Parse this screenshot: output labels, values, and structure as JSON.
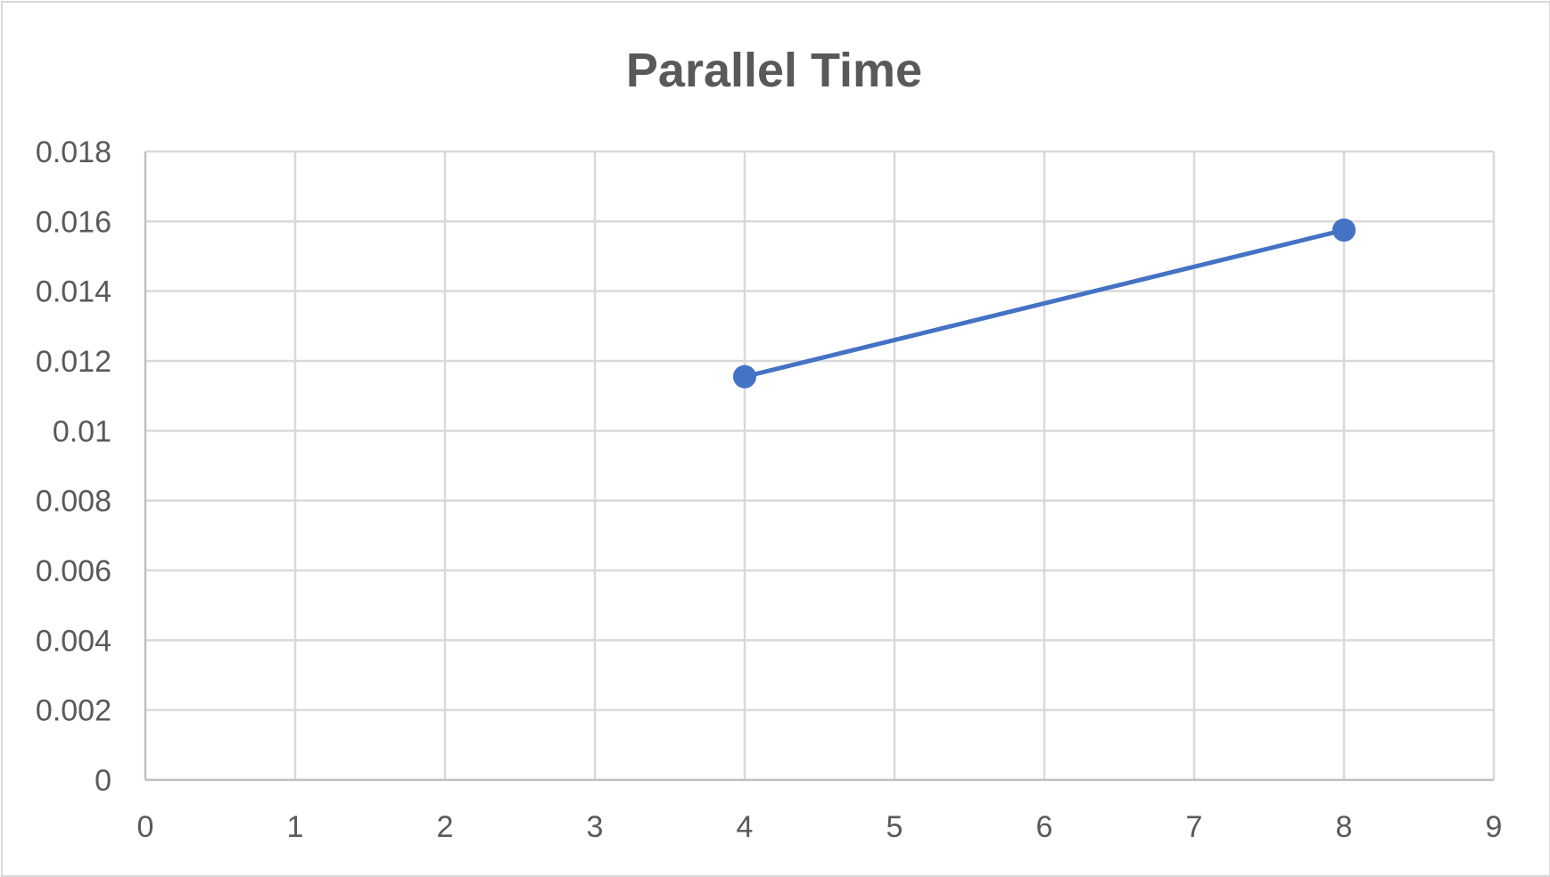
{
  "chart_data": {
    "type": "scatter",
    "title": "Parallel Time",
    "xlabel": "",
    "ylabel": "",
    "xlim": [
      0,
      9
    ],
    "ylim": [
      0,
      0.018
    ],
    "x_ticks": [
      "0",
      "1",
      "2",
      "3",
      "4",
      "5",
      "6",
      "7",
      "8",
      "9"
    ],
    "y_ticks": [
      "0",
      "0.002",
      "0.004",
      "0.006",
      "0.008",
      "0.01",
      "0.012",
      "0.014",
      "0.016",
      "0.018"
    ],
    "grid": true,
    "legend": "none",
    "series": [
      {
        "color": "#4472c4",
        "line": true,
        "markers": true,
        "points": [
          {
            "x": 4,
            "y": 0.01155
          },
          {
            "x": 8,
            "y": 0.01575
          }
        ]
      }
    ]
  }
}
